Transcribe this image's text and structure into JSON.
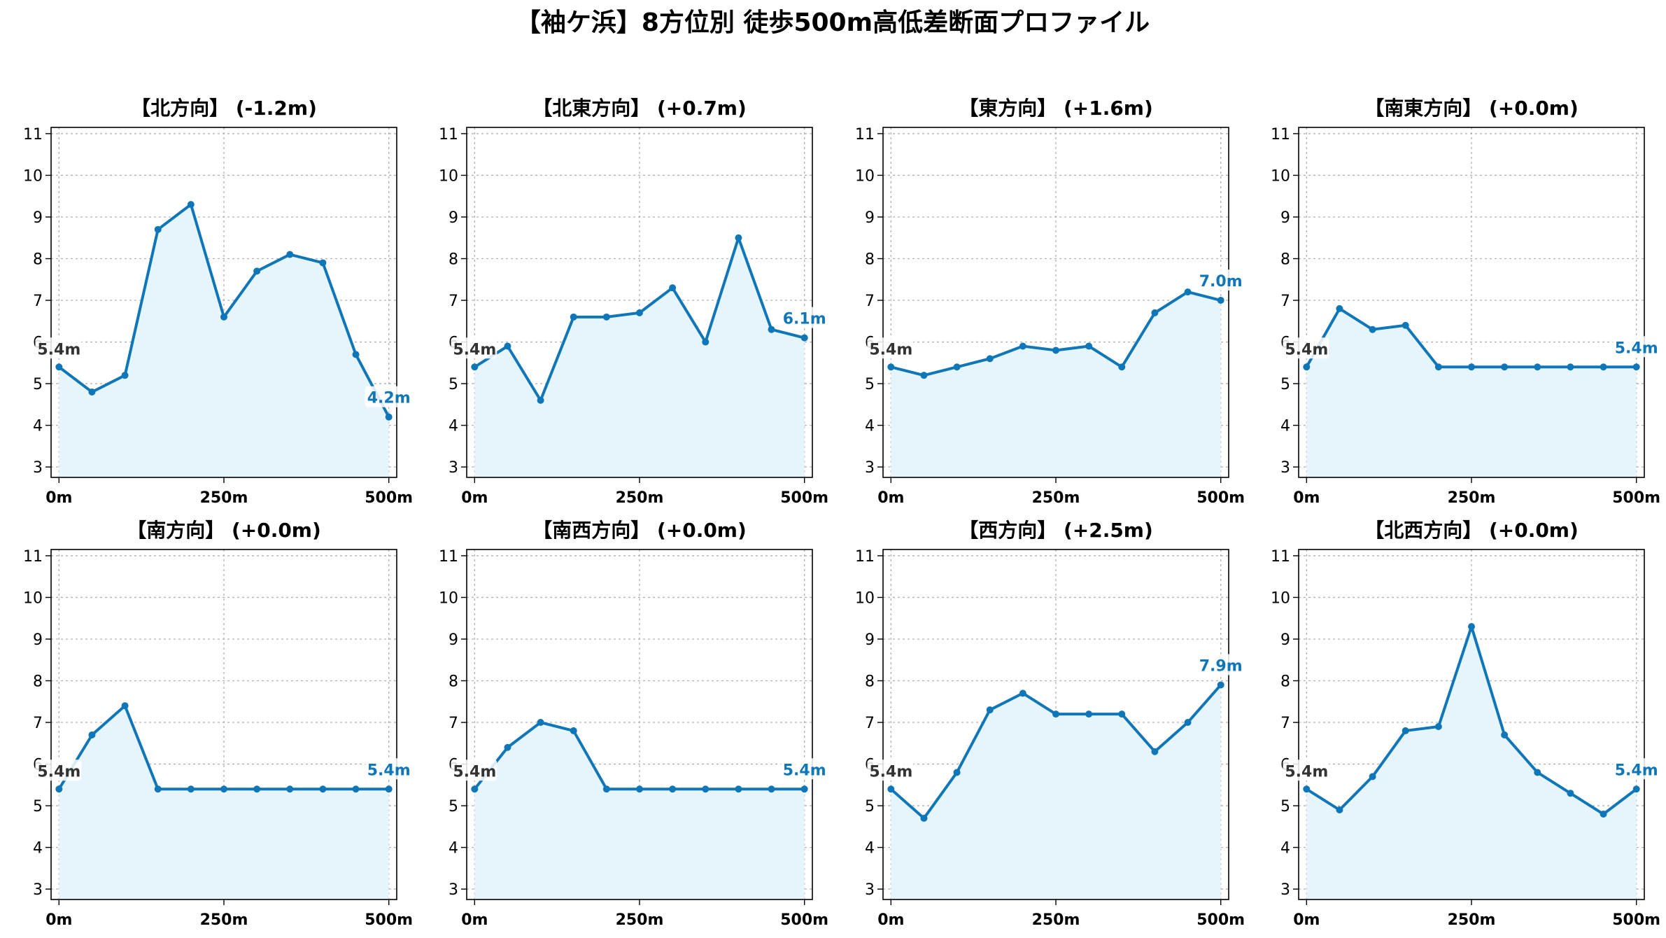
{
  "figure": {
    "title": "【袖ケ浜】8方位別 徒歩500m高低差断面プロファイル"
  },
  "colors": {
    "line": "#0f76b8",
    "fill": "#e6f4fb",
    "start_label": "#333333",
    "end_label": "#0f76b8"
  },
  "chart_data": [
    {
      "type": "line",
      "title": "【北方向】 (-1.2m)",
      "x": [
        0,
        50,
        100,
        150,
        200,
        250,
        300,
        350,
        400,
        450,
        500
      ],
      "y": [
        5.4,
        4.8,
        5.2,
        8.7,
        9.3,
        6.6,
        7.7,
        8.1,
        7.9,
        5.7,
        4.2
      ],
      "xticks": [
        0,
        250,
        500
      ],
      "xtick_labels": [
        "0m",
        "250m",
        "500m"
      ],
      "yticks": [
        3,
        4,
        5,
        6,
        7,
        8,
        9,
        10,
        11
      ],
      "xlim": [
        -12,
        512
      ],
      "ylim": [
        2.75,
        11.15
      ],
      "grid": true,
      "start_label": "5.4m",
      "end_label": "4.2m"
    },
    {
      "type": "line",
      "title": "【北東方向】 (+0.7m)",
      "x": [
        0,
        50,
        100,
        150,
        200,
        250,
        300,
        350,
        400,
        450,
        500
      ],
      "y": [
        5.4,
        5.9,
        4.6,
        6.6,
        6.6,
        6.7,
        7.3,
        6.0,
        8.5,
        6.3,
        6.1
      ],
      "xticks": [
        0,
        250,
        500
      ],
      "xtick_labels": [
        "0m",
        "250m",
        "500m"
      ],
      "yticks": [
        3,
        4,
        5,
        6,
        7,
        8,
        9,
        10,
        11
      ],
      "xlim": [
        -12,
        512
      ],
      "ylim": [
        2.75,
        11.15
      ],
      "grid": true,
      "start_label": "5.4m",
      "end_label": "6.1m"
    },
    {
      "type": "line",
      "title": "【東方向】 (+1.6m)",
      "x": [
        0,
        50,
        100,
        150,
        200,
        250,
        300,
        350,
        400,
        450,
        500
      ],
      "y": [
        5.4,
        5.2,
        5.4,
        5.6,
        5.9,
        5.8,
        5.9,
        5.4,
        6.7,
        7.2,
        7.0
      ],
      "xticks": [
        0,
        250,
        500
      ],
      "xtick_labels": [
        "0m",
        "250m",
        "500m"
      ],
      "yticks": [
        3,
        4,
        5,
        6,
        7,
        8,
        9,
        10,
        11
      ],
      "xlim": [
        -12,
        512
      ],
      "ylim": [
        2.75,
        11.15
      ],
      "grid": true,
      "start_label": "5.4m",
      "end_label": "7.0m"
    },
    {
      "type": "line",
      "title": "【南東方向】 (+0.0m)",
      "x": [
        0,
        50,
        100,
        150,
        200,
        250,
        300,
        350,
        400,
        450,
        500
      ],
      "y": [
        5.4,
        6.8,
        6.3,
        6.4,
        5.4,
        5.4,
        5.4,
        5.4,
        5.4,
        5.4,
        5.4
      ],
      "xticks": [
        0,
        250,
        500
      ],
      "xtick_labels": [
        "0m",
        "250m",
        "500m"
      ],
      "yticks": [
        3,
        4,
        5,
        6,
        7,
        8,
        9,
        10,
        11
      ],
      "xlim": [
        -12,
        512
      ],
      "ylim": [
        2.75,
        11.15
      ],
      "grid": true,
      "start_label": "5.4m",
      "end_label": "5.4m"
    },
    {
      "type": "line",
      "title": "【南方向】 (+0.0m)",
      "x": [
        0,
        50,
        100,
        150,
        200,
        250,
        300,
        350,
        400,
        450,
        500
      ],
      "y": [
        5.4,
        6.7,
        7.4,
        5.4,
        5.4,
        5.4,
        5.4,
        5.4,
        5.4,
        5.4,
        5.4
      ],
      "xticks": [
        0,
        250,
        500
      ],
      "xtick_labels": [
        "0m",
        "250m",
        "500m"
      ],
      "yticks": [
        3,
        4,
        5,
        6,
        7,
        8,
        9,
        10,
        11
      ],
      "xlim": [
        -12,
        512
      ],
      "ylim": [
        2.75,
        11.15
      ],
      "grid": true,
      "start_label": "5.4m",
      "end_label": "5.4m"
    },
    {
      "type": "line",
      "title": "【南西方向】 (+0.0m)",
      "x": [
        0,
        50,
        100,
        150,
        200,
        250,
        300,
        350,
        400,
        450,
        500
      ],
      "y": [
        5.4,
        6.4,
        7.0,
        6.8,
        5.4,
        5.4,
        5.4,
        5.4,
        5.4,
        5.4,
        5.4
      ],
      "xticks": [
        0,
        250,
        500
      ],
      "xtick_labels": [
        "0m",
        "250m",
        "500m"
      ],
      "yticks": [
        3,
        4,
        5,
        6,
        7,
        8,
        9,
        10,
        11
      ],
      "xlim": [
        -12,
        512
      ],
      "ylim": [
        2.75,
        11.15
      ],
      "grid": true,
      "start_label": "5.4m",
      "end_label": "5.4m"
    },
    {
      "type": "line",
      "title": "【西方向】 (+2.5m)",
      "x": [
        0,
        50,
        100,
        150,
        200,
        250,
        300,
        350,
        400,
        450,
        500
      ],
      "y": [
        5.4,
        4.7,
        5.8,
        7.3,
        7.7,
        7.2,
        7.2,
        7.2,
        6.3,
        7.0,
        7.9
      ],
      "xticks": [
        0,
        250,
        500
      ],
      "xtick_labels": [
        "0m",
        "250m",
        "500m"
      ],
      "yticks": [
        3,
        4,
        5,
        6,
        7,
        8,
        9,
        10,
        11
      ],
      "xlim": [
        -12,
        512
      ],
      "ylim": [
        2.75,
        11.15
      ],
      "grid": true,
      "start_label": "5.4m",
      "end_label": "7.9m"
    },
    {
      "type": "line",
      "title": "【北西方向】 (+0.0m)",
      "x": [
        0,
        50,
        100,
        150,
        200,
        250,
        300,
        350,
        400,
        450,
        500
      ],
      "y": [
        5.4,
        4.9,
        5.7,
        6.8,
        6.9,
        9.3,
        6.7,
        5.8,
        5.3,
        4.8,
        5.4
      ],
      "xticks": [
        0,
        250,
        500
      ],
      "xtick_labels": [
        "0m",
        "250m",
        "500m"
      ],
      "yticks": [
        3,
        4,
        5,
        6,
        7,
        8,
        9,
        10,
        11
      ],
      "xlim": [
        -12,
        512
      ],
      "ylim": [
        2.75,
        11.15
      ],
      "grid": true,
      "start_label": "5.4m",
      "end_label": "5.4m"
    }
  ]
}
